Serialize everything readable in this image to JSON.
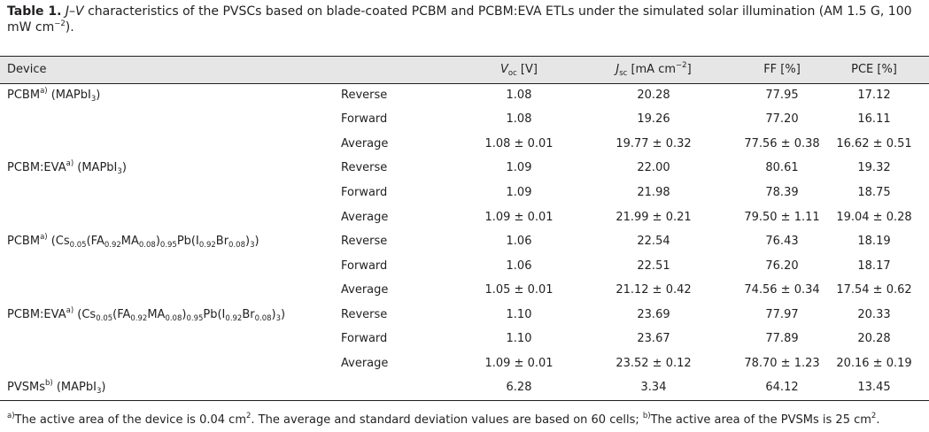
{
  "caption": {
    "label": "Table 1.",
    "jv": "J–V",
    "text": " characteristics of the PVSCs based on blade-coated PCBM and PCBM:EVA ETLs under the simulated solar illumination (AM 1.5 G, 100 mW cm",
    "exp": "−2",
    "end": ")."
  },
  "headers": {
    "device": "Device",
    "voc_v": "V",
    "voc_sub": "oc",
    "voc_unit": " [V]",
    "jsc_j": "J",
    "jsc_sub": "sc",
    "jsc_unit": " [mA cm",
    "jsc_exp": "−2",
    "jsc_close": "]",
    "ff": "FF [%]",
    "pce": "PCE [%]"
  },
  "devices": {
    "pcbm": "PCBM",
    "pcbm_eva": "PCBM:EVA",
    "pvsms": "PVSMs",
    "mark_a": "a)",
    "mark_b": "b)",
    "mapbi3": " (MAPbI",
    "mapbi3_sub": "3",
    "paren": ")",
    "cs_open": " (Cs",
    "cs_sub": "0.05",
    "fa": "(FA",
    "fa_sub": "0.92",
    "ma": "MA",
    "ma_sub": "0.08",
    "close_pb": ")",
    "pb_sub": "0.95",
    "pb": "Pb(I",
    "i_sub": "0.92",
    "br": "Br",
    "br_sub": "0.08",
    "close_3": ")",
    "three_sub": "3",
    "end": ")"
  },
  "rows": [
    {
      "scan": "Reverse",
      "voc": "1.08",
      "jsc": "20.28",
      "ff": "77.95",
      "pce": "17.12"
    },
    {
      "scan": "Forward",
      "voc": "1.08",
      "jsc": "19.26",
      "ff": "77.20",
      "pce": "16.11"
    },
    {
      "scan": "Average",
      "voc": "1.08 ± 0.01",
      "jsc": "19.77 ± 0.32",
      "ff": "77.56 ± 0.38",
      "pce": "16.62 ± 0.51"
    },
    {
      "scan": "Reverse",
      "voc": "1.09",
      "jsc": "22.00",
      "ff": "80.61",
      "pce": "19.32"
    },
    {
      "scan": "Forward",
      "voc": "1.09",
      "jsc": "21.98",
      "ff": "78.39",
      "pce": "18.75"
    },
    {
      "scan": "Average",
      "voc": "1.09 ± 0.01",
      "jsc": "21.99 ± 0.21",
      "ff": "79.50 ± 1.11",
      "pce": "19.04 ± 0.28"
    },
    {
      "scan": "Reverse",
      "voc": "1.06",
      "jsc": "22.54",
      "ff": "76.43",
      "pce": "18.19"
    },
    {
      "scan": "Forward",
      "voc": "1.06",
      "jsc": "22.51",
      "ff": "76.20",
      "pce": "18.17"
    },
    {
      "scan": "Average",
      "voc": "1.05 ± 0.01",
      "jsc": "21.12 ± 0.42",
      "ff": "74.56 ± 0.34",
      "pce": "17.54 ± 0.62"
    },
    {
      "scan": "Reverse",
      "voc": "1.10",
      "jsc": "23.69",
      "ff": "77.97",
      "pce": "20.33"
    },
    {
      "scan": "Forward",
      "voc": "1.10",
      "jsc": "23.67",
      "ff": "77.89",
      "pce": "20.28"
    },
    {
      "scan": "Average",
      "voc": "1.09 ± 0.01",
      "jsc": "23.52 ± 0.12",
      "ff": "78.70 ± 1.23",
      "pce": "20.16 ± 0.19"
    },
    {
      "scan": "",
      "voc": "6.28",
      "jsc": "3.34",
      "ff": "64.12",
      "pce": "13.45"
    }
  ],
  "footnote": {
    "a_mark": "a)",
    "a_text": "The active area of the device is 0.04 cm",
    "a_exp": "2",
    "a_rest": ". The average and standard deviation values are based on 60 cells; ",
    "b_mark": "b)",
    "b_text": "The active area of the PVSMs is 25 cm",
    "b_exp": "2",
    "b_end": "."
  }
}
